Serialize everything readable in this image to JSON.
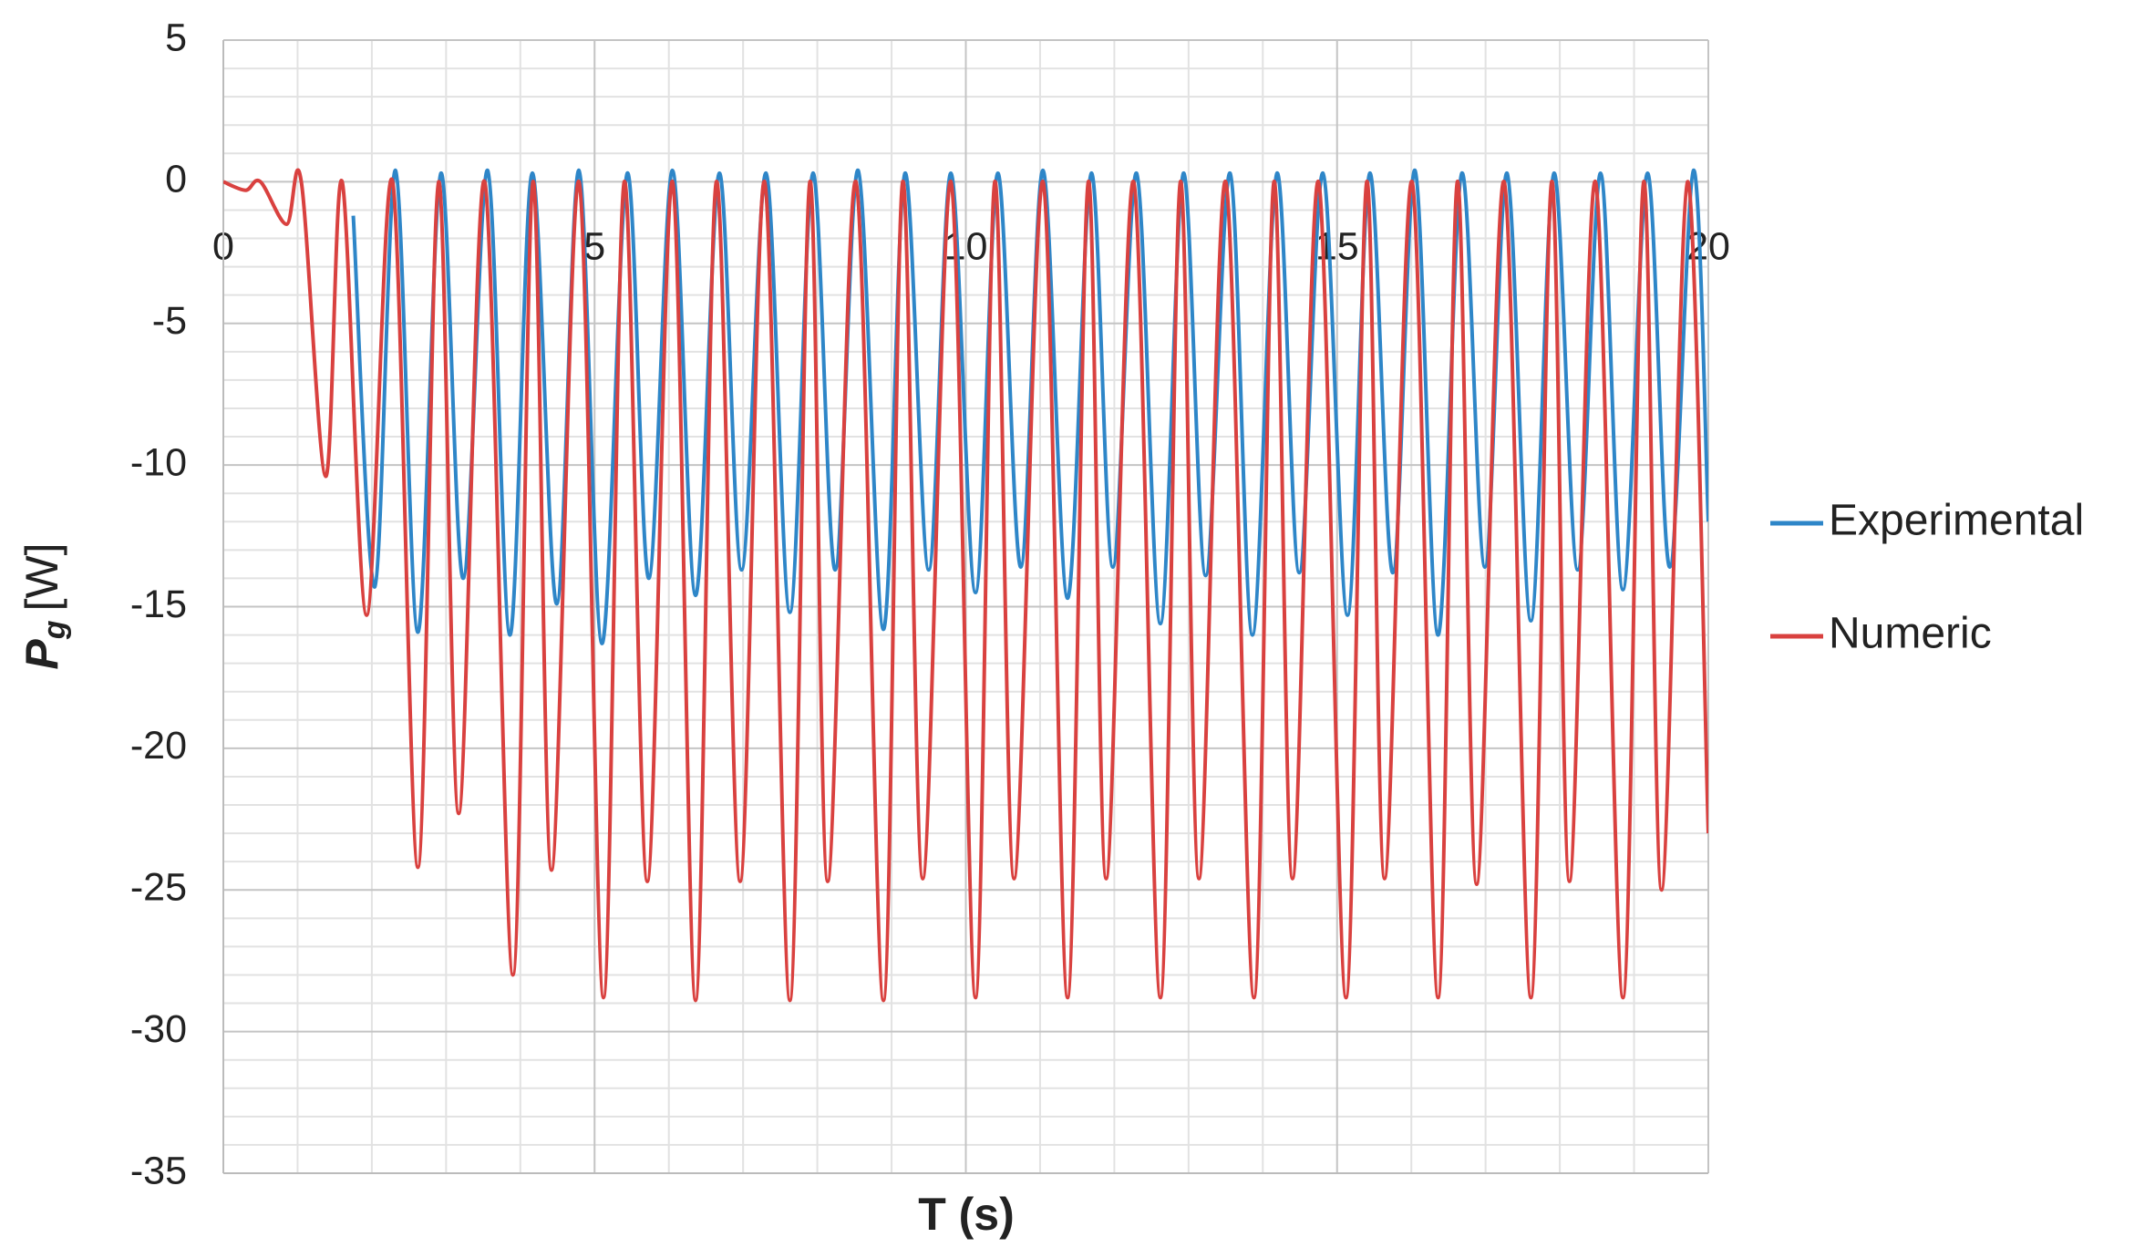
{
  "chart_data": {
    "type": "line",
    "xlabel": "T (s)",
    "ylabel": "P",
    "ylabel_sub": "g",
    "ylabel_unit": "[W]",
    "xlim": [
      0,
      20
    ],
    "xticks": [
      0,
      5,
      10,
      15,
      20
    ],
    "ylim": [
      -35,
      5
    ],
    "yticks": [
      5,
      0,
      -5,
      -10,
      -15,
      -20,
      -25,
      -30,
      -35
    ],
    "grid": true,
    "minor_grid": true,
    "legend": "right",
    "series": [
      {
        "name": "Experimental",
        "color": "#2e86c8",
        "x": [
          1.75,
          2.04,
          2.32,
          2.62,
          2.93,
          3.23,
          3.56,
          3.86,
          4.16,
          4.49,
          4.79,
          5.1,
          5.44,
          5.73,
          6.05,
          6.36,
          6.68,
          6.98,
          7.31,
          7.63,
          7.94,
          8.24,
          8.55,
          8.89,
          9.18,
          9.5,
          9.8,
          10.13,
          10.43,
          10.74,
          11.04,
          11.37,
          11.69,
          11.98,
          12.3,
          12.62,
          12.93,
          13.23,
          13.56,
          13.86,
          14.19,
          14.49,
          14.81,
          15.14,
          15.44,
          15.75,
          16.05,
          16.36,
          16.68,
          16.99,
          17.29,
          17.61,
          17.92,
          18.24,
          18.55,
          18.85,
          19.18,
          19.48,
          19.8,
          20
        ],
        "values": [
          -1.2,
          -14.3,
          0.4,
          -15.9,
          0.3,
          -14.0,
          0.4,
          -16.0,
          0.3,
          -14.9,
          0.4,
          -16.3,
          0.3,
          -14.0,
          0.4,
          -14.6,
          0.3,
          -13.7,
          0.3,
          -15.2,
          0.3,
          -13.7,
          0.4,
          -15.8,
          0.3,
          -13.7,
          0.3,
          -14.5,
          0.3,
          -13.6,
          0.4,
          -14.7,
          0.3,
          -13.6,
          0.3,
          -15.6,
          0.3,
          -13.9,
          0.3,
          -16.0,
          0.3,
          -13.8,
          0.3,
          -15.3,
          0.3,
          -13.8,
          0.4,
          -16.0,
          0.3,
          -13.6,
          0.3,
          -15.5,
          0.3,
          -13.7,
          0.3,
          -14.4,
          0.3,
          -13.6,
          0.4,
          -12
        ]
      },
      {
        "name": "Numeric",
        "color": "#d9413f",
        "x": [
          0,
          0.3,
          0.5,
          0.85,
          1.05,
          1.38,
          1.6,
          1.93,
          2.28,
          2.62,
          2.9,
          3.17,
          3.52,
          3.9,
          4.17,
          4.42,
          4.79,
          5.12,
          5.4,
          5.71,
          6.05,
          6.36,
          6.64,
          6.96,
          7.29,
          7.63,
          7.9,
          8.14,
          8.52,
          8.89,
          9.15,
          9.42,
          9.8,
          10.13,
          10.39,
          10.65,
          11.04,
          11.37,
          11.65,
          11.89,
          12.26,
          12.62,
          12.89,
          13.14,
          13.5,
          13.88,
          14.15,
          14.4,
          14.75,
          15.12,
          15.4,
          15.64,
          16.01,
          16.36,
          16.62,
          16.88,
          17.25,
          17.61,
          17.89,
          18.13,
          18.48,
          18.85,
          19.13,
          19.37,
          19.72,
          20
        ],
        "values": [
          0,
          -0.3,
          0,
          -1.5,
          0,
          -10.4,
          0,
          -15.3,
          0,
          -24.2,
          0,
          -22.3,
          0,
          -28,
          0,
          -24.3,
          0,
          -28.8,
          0,
          -24.7,
          0,
          -28.9,
          0,
          -24.7,
          0,
          -28.9,
          0,
          -24.7,
          0,
          -28.9,
          0,
          -24.6,
          0,
          -28.8,
          0,
          -24.6,
          0,
          -28.8,
          0,
          -24.6,
          0,
          -28.8,
          0,
          -24.6,
          0,
          -28.8,
          0,
          -24.6,
          0,
          -28.8,
          0,
          -24.6,
          0,
          -28.8,
          0,
          -24.8,
          0,
          -28.8,
          0,
          -24.7,
          0,
          -28.8,
          0,
          -25,
          0,
          -23
        ]
      }
    ]
  }
}
